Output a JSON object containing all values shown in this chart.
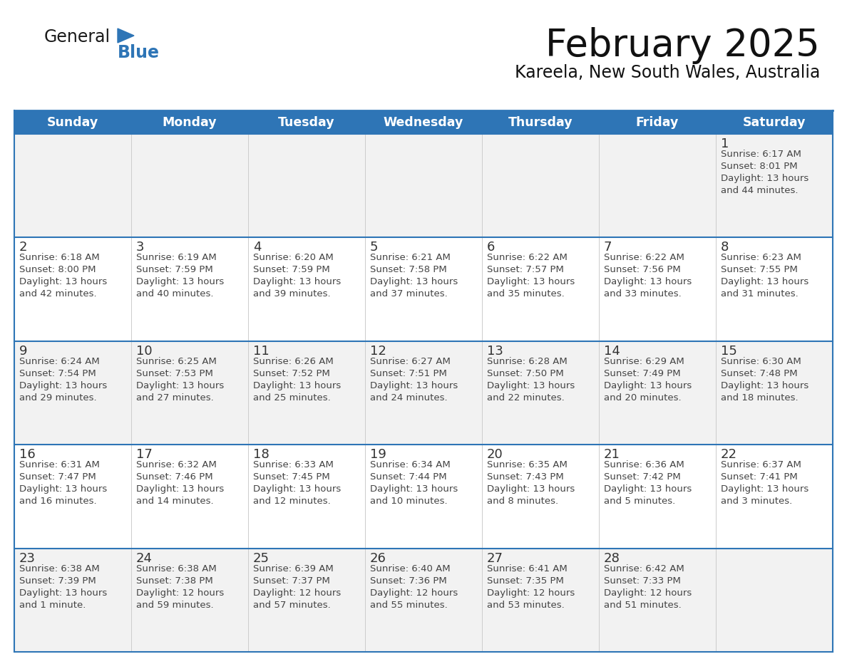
{
  "title": "February 2025",
  "subtitle": "Kareela, New South Wales, Australia",
  "header_bg": "#2E75B6",
  "header_text_color": "#FFFFFF",
  "day_names": [
    "Sunday",
    "Monday",
    "Tuesday",
    "Wednesday",
    "Thursday",
    "Friday",
    "Saturday"
  ],
  "cell_border_color": "#2E75B6",
  "date_text_color": "#333333",
  "info_text_color": "#444444",
  "logo_general_color": "#1a1a1a",
  "logo_blue_color": "#2E75B6",
  "logo_triangle_color": "#2E75B6",
  "calendar": [
    [
      {
        "day": null,
        "sunrise": null,
        "sunset": null,
        "daylight": null
      },
      {
        "day": null,
        "sunrise": null,
        "sunset": null,
        "daylight": null
      },
      {
        "day": null,
        "sunrise": null,
        "sunset": null,
        "daylight": null
      },
      {
        "day": null,
        "sunrise": null,
        "sunset": null,
        "daylight": null
      },
      {
        "day": null,
        "sunrise": null,
        "sunset": null,
        "daylight": null
      },
      {
        "day": null,
        "sunrise": null,
        "sunset": null,
        "daylight": null
      },
      {
        "day": 1,
        "sunrise": "6:17 AM",
        "sunset": "8:01 PM",
        "daylight": "13 hours\nand 44 minutes."
      }
    ],
    [
      {
        "day": 2,
        "sunrise": "6:18 AM",
        "sunset": "8:00 PM",
        "daylight": "13 hours\nand 42 minutes."
      },
      {
        "day": 3,
        "sunrise": "6:19 AM",
        "sunset": "7:59 PM",
        "daylight": "13 hours\nand 40 minutes."
      },
      {
        "day": 4,
        "sunrise": "6:20 AM",
        "sunset": "7:59 PM",
        "daylight": "13 hours\nand 39 minutes."
      },
      {
        "day": 5,
        "sunrise": "6:21 AM",
        "sunset": "7:58 PM",
        "daylight": "13 hours\nand 37 minutes."
      },
      {
        "day": 6,
        "sunrise": "6:22 AM",
        "sunset": "7:57 PM",
        "daylight": "13 hours\nand 35 minutes."
      },
      {
        "day": 7,
        "sunrise": "6:22 AM",
        "sunset": "7:56 PM",
        "daylight": "13 hours\nand 33 minutes."
      },
      {
        "day": 8,
        "sunrise": "6:23 AM",
        "sunset": "7:55 PM",
        "daylight": "13 hours\nand 31 minutes."
      }
    ],
    [
      {
        "day": 9,
        "sunrise": "6:24 AM",
        "sunset": "7:54 PM",
        "daylight": "13 hours\nand 29 minutes."
      },
      {
        "day": 10,
        "sunrise": "6:25 AM",
        "sunset": "7:53 PM",
        "daylight": "13 hours\nand 27 minutes."
      },
      {
        "day": 11,
        "sunrise": "6:26 AM",
        "sunset": "7:52 PM",
        "daylight": "13 hours\nand 25 minutes."
      },
      {
        "day": 12,
        "sunrise": "6:27 AM",
        "sunset": "7:51 PM",
        "daylight": "13 hours\nand 24 minutes."
      },
      {
        "day": 13,
        "sunrise": "6:28 AM",
        "sunset": "7:50 PM",
        "daylight": "13 hours\nand 22 minutes."
      },
      {
        "day": 14,
        "sunrise": "6:29 AM",
        "sunset": "7:49 PM",
        "daylight": "13 hours\nand 20 minutes."
      },
      {
        "day": 15,
        "sunrise": "6:30 AM",
        "sunset": "7:48 PM",
        "daylight": "13 hours\nand 18 minutes."
      }
    ],
    [
      {
        "day": 16,
        "sunrise": "6:31 AM",
        "sunset": "7:47 PM",
        "daylight": "13 hours\nand 16 minutes."
      },
      {
        "day": 17,
        "sunrise": "6:32 AM",
        "sunset": "7:46 PM",
        "daylight": "13 hours\nand 14 minutes."
      },
      {
        "day": 18,
        "sunrise": "6:33 AM",
        "sunset": "7:45 PM",
        "daylight": "13 hours\nand 12 minutes."
      },
      {
        "day": 19,
        "sunrise": "6:34 AM",
        "sunset": "7:44 PM",
        "daylight": "13 hours\nand 10 minutes."
      },
      {
        "day": 20,
        "sunrise": "6:35 AM",
        "sunset": "7:43 PM",
        "daylight": "13 hours\nand 8 minutes."
      },
      {
        "day": 21,
        "sunrise": "6:36 AM",
        "sunset": "7:42 PM",
        "daylight": "13 hours\nand 5 minutes."
      },
      {
        "day": 22,
        "sunrise": "6:37 AM",
        "sunset": "7:41 PM",
        "daylight": "13 hours\nand 3 minutes."
      }
    ],
    [
      {
        "day": 23,
        "sunrise": "6:38 AM",
        "sunset": "7:39 PM",
        "daylight": "13 hours\nand 1 minute."
      },
      {
        "day": 24,
        "sunrise": "6:38 AM",
        "sunset": "7:38 PM",
        "daylight": "12 hours\nand 59 minutes."
      },
      {
        "day": 25,
        "sunrise": "6:39 AM",
        "sunset": "7:37 PM",
        "daylight": "12 hours\nand 57 minutes."
      },
      {
        "day": 26,
        "sunrise": "6:40 AM",
        "sunset": "7:36 PM",
        "daylight": "12 hours\nand 55 minutes."
      },
      {
        "day": 27,
        "sunrise": "6:41 AM",
        "sunset": "7:35 PM",
        "daylight": "12 hours\nand 53 minutes."
      },
      {
        "day": 28,
        "sunrise": "6:42 AM",
        "sunset": "7:33 PM",
        "daylight": "12 hours\nand 51 minutes."
      },
      {
        "day": null,
        "sunrise": null,
        "sunset": null,
        "daylight": null
      }
    ]
  ]
}
